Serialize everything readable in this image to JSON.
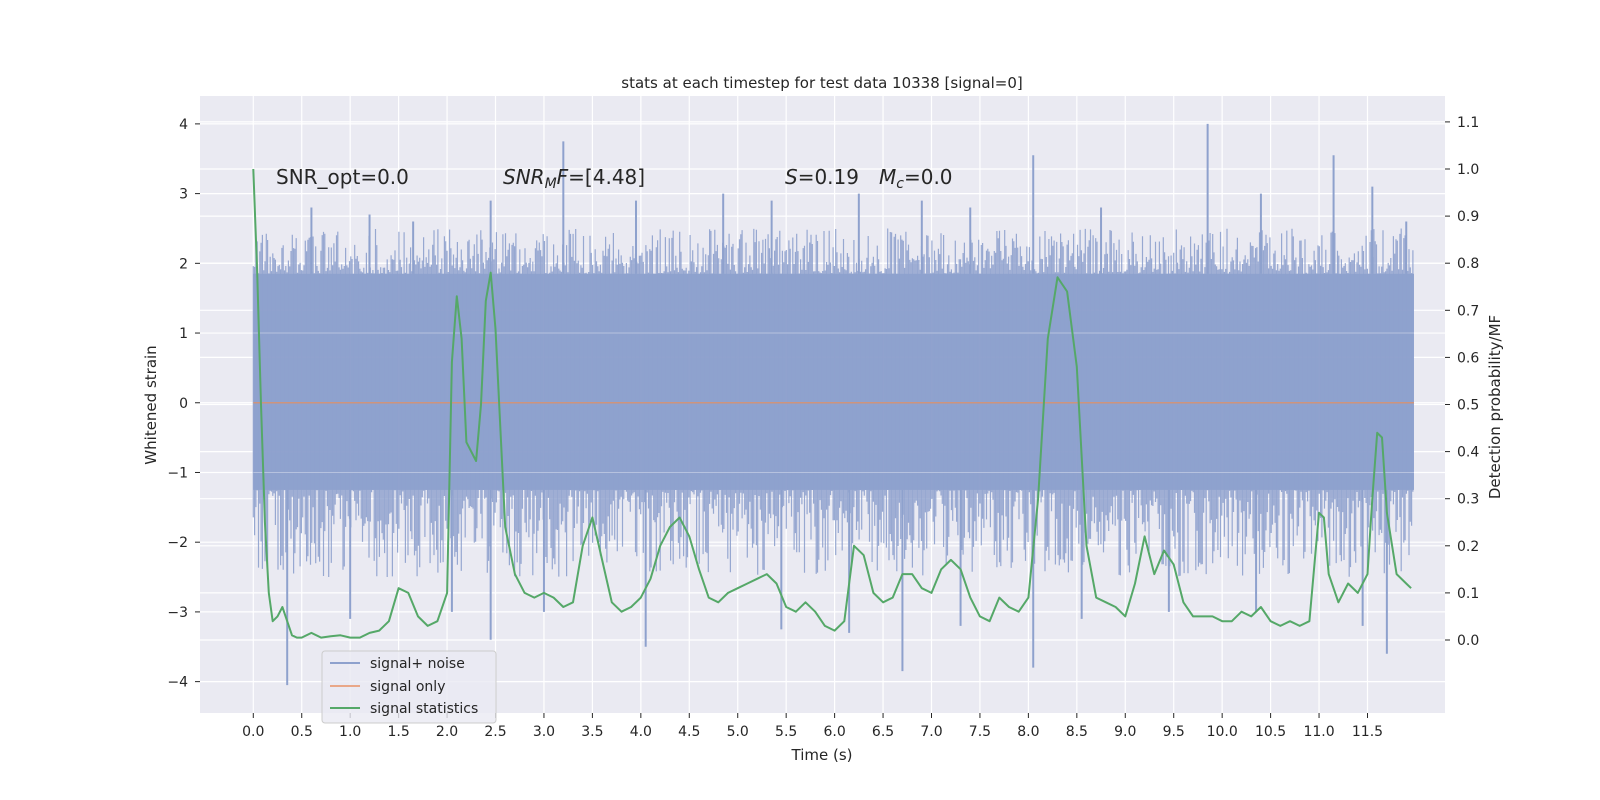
{
  "chart_data": {
    "type": "line",
    "title": "stats at each timestep for test data 10338 [signal=0]",
    "xlabel": "Time (s)",
    "ylabel": "Whitened strain",
    "y2label": "Detection probability/MF",
    "xlim": [
      -0.55,
      12.3
    ],
    "ylim": [
      -4.45,
      4.4
    ],
    "y2lim": [
      -0.155,
      1.155
    ],
    "x_ticks": [
      0.0,
      0.5,
      1.0,
      1.5,
      2.0,
      2.5,
      3.0,
      3.5,
      4.0,
      4.5,
      5.0,
      5.5,
      6.0,
      6.5,
      7.0,
      7.5,
      8.0,
      8.5,
      9.0,
      9.5,
      10.0,
      10.5,
      11.0,
      11.5
    ],
    "x_tick_labels": [
      "0.0",
      "0.5",
      "1.0",
      "1.5",
      "2.0",
      "2.5",
      "3.0",
      "3.5",
      "4.0",
      "4.5",
      "5.0",
      "5.5",
      "6.0",
      "6.5",
      "7.0",
      "7.5",
      "8.0",
      "8.5",
      "9.0",
      "9.5",
      "10.0",
      "10.5",
      "11.0",
      "11.5"
    ],
    "y_ticks": [
      4,
      3,
      2,
      1,
      0,
      -1,
      -2,
      -3,
      -4
    ],
    "y_tick_labels": [
      "4",
      "3",
      "2",
      "1",
      "0",
      "−1",
      "−2",
      "−3",
      "−4"
    ],
    "y2_ticks": [
      1.1,
      1.0,
      0.9,
      0.8,
      0.7,
      0.6,
      0.5,
      0.4,
      0.3,
      0.2,
      0.1,
      0.0
    ],
    "y2_tick_labels": [
      "1.1",
      "1.0",
      "0.9",
      "0.8",
      "0.7",
      "0.6",
      "0.5",
      "0.4",
      "0.3",
      "0.2",
      "0.1",
      "0.0"
    ],
    "grid": true,
    "legend_position": "lower-left",
    "annotations": {
      "snr_opt": "SNR_opt=0.0",
      "snr_mf_italic": "SNR",
      "snr_mf_sub": "M",
      "snr_mf_italic2": "F",
      "snr_mf_value": "=[4.48]",
      "s_italic": "S",
      "s_value": "=0.19",
      "mc_italic": "M",
      "mc_sub": "c",
      "mc_value": "=0.0"
    },
    "series": [
      {
        "name": "signal+ noise",
        "color": "#8ea1cd",
        "t_start": 0.0,
        "t_end": 11.98,
        "core_band": [
          -1.25,
          1.85
        ],
        "envelope": [
          -2.5,
          2.5
        ],
        "peaks_up": [
          [
            0.02,
            1.8
          ],
          [
            0.6,
            2.8
          ],
          [
            1.2,
            2.7
          ],
          [
            1.65,
            2.6
          ],
          [
            2.45,
            2.9
          ],
          [
            3.2,
            3.75
          ],
          [
            3.95,
            2.9
          ],
          [
            4.85,
            3.0
          ],
          [
            5.35,
            2.9
          ],
          [
            6.25,
            3.0
          ],
          [
            6.9,
            2.9
          ],
          [
            7.4,
            2.8
          ],
          [
            8.05,
            3.55
          ],
          [
            8.75,
            2.8
          ],
          [
            9.85,
            4.0
          ],
          [
            10.4,
            3.0
          ],
          [
            11.15,
            3.55
          ],
          [
            11.55,
            3.1
          ],
          [
            11.9,
            2.6
          ]
        ],
        "peaks_down": [
          [
            0.35,
            -4.05
          ],
          [
            1.0,
            -3.1
          ],
          [
            2.05,
            -3.0
          ],
          [
            2.45,
            -3.4
          ],
          [
            3.0,
            -3.0
          ],
          [
            4.05,
            -3.5
          ],
          [
            5.45,
            -3.25
          ],
          [
            6.15,
            -3.3
          ],
          [
            6.7,
            -3.85
          ],
          [
            7.3,
            -3.2
          ],
          [
            8.05,
            -3.8
          ],
          [
            8.55,
            -3.1
          ],
          [
            9.45,
            -3.0
          ],
          [
            10.35,
            -3.0
          ],
          [
            11.45,
            -3.2
          ],
          [
            11.7,
            -3.6
          ]
        ]
      },
      {
        "name": "signal only",
        "color": "#dd8452",
        "x": [
          0.0,
          11.98
        ],
        "y": [
          0.0,
          0.0
        ]
      },
      {
        "name": "signal statistics",
        "color": "#55a868",
        "axis": "right",
        "x": [
          0.0,
          0.04,
          0.08,
          0.12,
          0.16,
          0.2,
          0.25,
          0.3,
          0.35,
          0.4,
          0.45,
          0.5,
          0.6,
          0.7,
          0.8,
          0.9,
          1.0,
          1.1,
          1.2,
          1.3,
          1.4,
          1.5,
          1.6,
          1.7,
          1.8,
          1.9,
          2.0,
          2.05,
          2.1,
          2.15,
          2.2,
          2.3,
          2.35,
          2.4,
          2.45,
          2.5,
          2.6,
          2.7,
          2.8,
          2.9,
          3.0,
          3.1,
          3.2,
          3.3,
          3.4,
          3.5,
          3.6,
          3.7,
          3.8,
          3.9,
          4.0,
          4.1,
          4.2,
          4.3,
          4.4,
          4.5,
          4.6,
          4.7,
          4.8,
          4.9,
          5.0,
          5.1,
          5.2,
          5.3,
          5.4,
          5.5,
          5.6,
          5.7,
          5.8,
          5.9,
          6.0,
          6.1,
          6.2,
          6.3,
          6.4,
          6.5,
          6.6,
          6.7,
          6.8,
          6.9,
          7.0,
          7.1,
          7.2,
          7.3,
          7.4,
          7.5,
          7.6,
          7.7,
          7.8,
          7.9,
          8.0,
          8.1,
          8.2,
          8.3,
          8.4,
          8.5,
          8.6,
          8.7,
          8.8,
          8.9,
          9.0,
          9.1,
          9.2,
          9.3,
          9.4,
          9.5,
          9.6,
          9.7,
          9.8,
          9.9,
          10.0,
          10.1,
          10.2,
          10.3,
          10.4,
          10.5,
          10.6,
          10.7,
          10.8,
          10.9,
          11.0,
          11.05,
          11.1,
          11.2,
          11.3,
          11.4,
          11.5,
          11.55,
          11.6,
          11.65,
          11.7,
          11.8,
          11.9,
          11.95
        ],
        "y": [
          1.0,
          0.78,
          0.5,
          0.25,
          0.1,
          0.04,
          0.05,
          0.07,
          0.04,
          0.01,
          0.005,
          0.005,
          0.015,
          0.005,
          0.008,
          0.01,
          0.005,
          0.005,
          0.015,
          0.02,
          0.04,
          0.11,
          0.1,
          0.05,
          0.03,
          0.04,
          0.1,
          0.59,
          0.73,
          0.64,
          0.42,
          0.38,
          0.5,
          0.72,
          0.78,
          0.66,
          0.24,
          0.14,
          0.1,
          0.09,
          0.1,
          0.09,
          0.07,
          0.08,
          0.2,
          0.26,
          0.17,
          0.08,
          0.06,
          0.07,
          0.09,
          0.13,
          0.2,
          0.24,
          0.26,
          0.22,
          0.15,
          0.09,
          0.08,
          0.1,
          0.11,
          0.12,
          0.13,
          0.14,
          0.12,
          0.07,
          0.06,
          0.08,
          0.06,
          0.03,
          0.02,
          0.04,
          0.2,
          0.18,
          0.1,
          0.08,
          0.09,
          0.14,
          0.14,
          0.11,
          0.1,
          0.15,
          0.17,
          0.15,
          0.09,
          0.05,
          0.04,
          0.09,
          0.07,
          0.06,
          0.09,
          0.3,
          0.64,
          0.77,
          0.74,
          0.58,
          0.2,
          0.09,
          0.08,
          0.07,
          0.05,
          0.12,
          0.22,
          0.14,
          0.19,
          0.16,
          0.08,
          0.05,
          0.05,
          0.05,
          0.04,
          0.04,
          0.06,
          0.05,
          0.07,
          0.04,
          0.03,
          0.04,
          0.03,
          0.04,
          0.27,
          0.26,
          0.14,
          0.08,
          0.12,
          0.1,
          0.14,
          0.3,
          0.44,
          0.43,
          0.27,
          0.14,
          0.12,
          0.11
        ]
      }
    ]
  }
}
